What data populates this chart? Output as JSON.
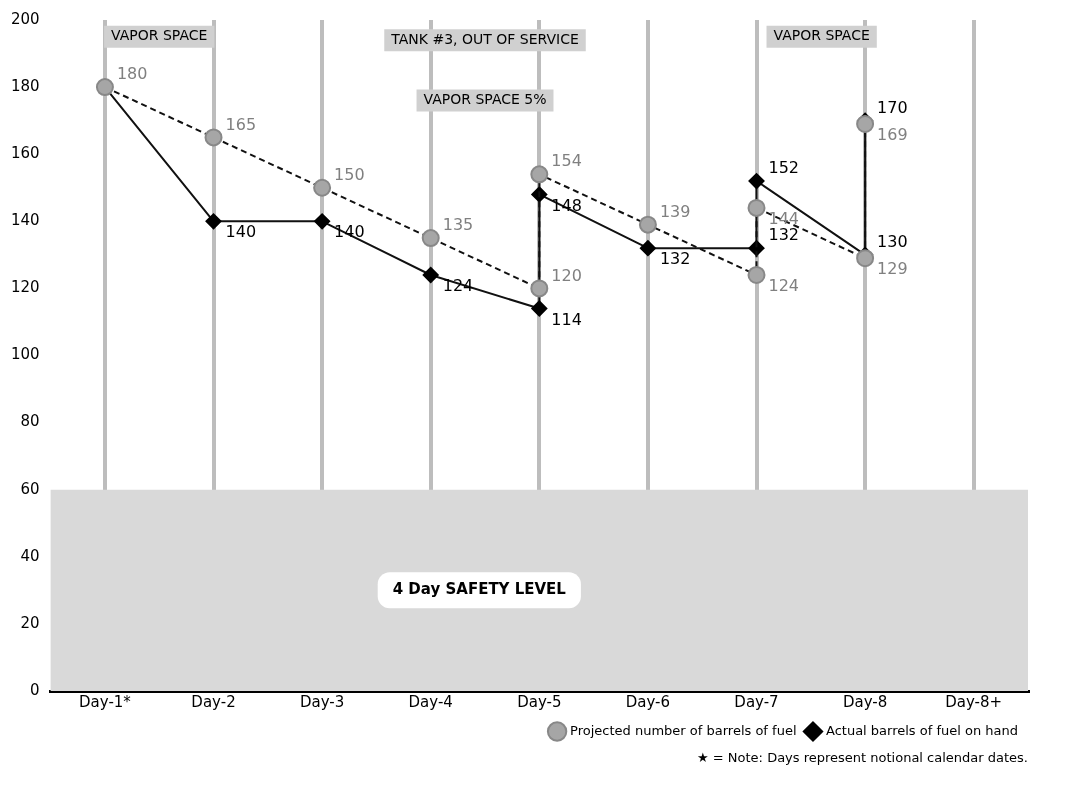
{
  "chart_data": {
    "type": "line",
    "categories": [
      "Day-1*",
      "Day-2",
      "Day-3",
      "Day-4",
      "Day-5",
      "Day-6",
      "Day-7",
      "Day-8",
      "Day-8+"
    ],
    "ylim": [
      0,
      200
    ],
    "yticks": [
      0,
      20,
      40,
      60,
      80,
      100,
      120,
      140,
      160,
      180,
      200
    ],
    "grid": "x",
    "legend": "bottom right",
    "series": [
      {
        "name": "Projected number of barrels of fuel",
        "color": "#a6a6a6",
        "marker": "circle",
        "line_style": "dashed",
        "x": [
          "Day-1*",
          "Day-2",
          "Day-3",
          "Day-4",
          "Day-5",
          "Day-5",
          "Day-6",
          "Day-7",
          "Day-7",
          "Day-8",
          "Day-8"
        ],
        "values": [
          180,
          165,
          150,
          135,
          120,
          154,
          139,
          124,
          144,
          129,
          169
        ],
        "value_labels": [
          "180",
          "165",
          "150",
          "135",
          "120",
          "154",
          "139",
          "124",
          "144",
          "129",
          "169"
        ]
      },
      {
        "name": "Actual barrels of fuel on hand",
        "color": "#000000",
        "marker": "diamond",
        "line_style": "solid",
        "x": [
          "Day-1*",
          "Day-2",
          "Day-3",
          "Day-4",
          "Day-5",
          "Day-5",
          "Day-6",
          "Day-7",
          "Day-7",
          "Day-8",
          "Day-8"
        ],
        "values": [
          180,
          140,
          140,
          124,
          114,
          148,
          132,
          132,
          152,
          130,
          170
        ],
        "value_labels": [
          null,
          "140",
          "140",
          "124",
          "114",
          "148",
          "132",
          "132",
          "152",
          "130",
          "170"
        ]
      }
    ],
    "bands": [
      {
        "axis": "y",
        "from": 0,
        "to": 60,
        "label": "4 Day SAFETY LEVEL",
        "color": "#d9d9d9"
      }
    ],
    "annotations": [
      "VAPOR SPACE",
      "TANK #3, OUT OF SERVICE",
      "VAPOR SPACE 5%",
      "VAPOR SPACE",
      "★ = Note:  Days represent notional calendar dates."
    ]
  }
}
